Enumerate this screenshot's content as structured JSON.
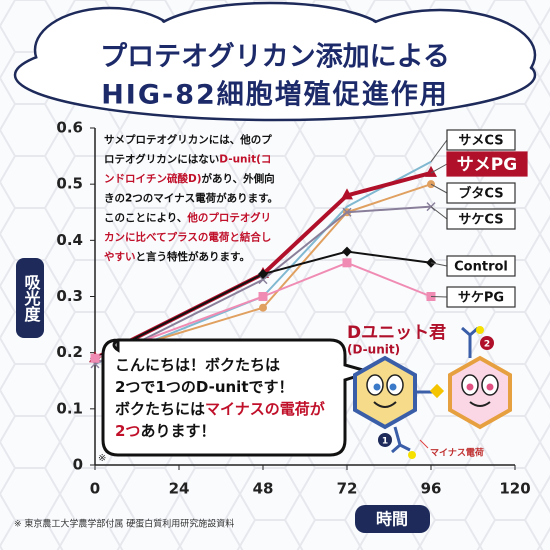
{
  "chart_data": {
    "type": "line",
    "title": [
      "プロテオグリカン添加による",
      "HIG-82細胞増殖促進作用"
    ],
    "y_label": "吸光度",
    "x_label": "時間",
    "x": [
      0,
      48,
      72,
      96
    ],
    "xlim": [
      0,
      120
    ],
    "xticks": [
      0,
      24,
      48,
      72,
      96,
      120
    ],
    "ylim": [
      0,
      0.6
    ],
    "yticks": [
      0,
      {
        "value": 0.1,
        "label": "0.1"
      },
      {
        "value": 0.2,
        "label": "0.2"
      },
      {
        "value": 0.3,
        "label": "0.3"
      },
      {
        "value": 0.4,
        "label": "0.4"
      },
      {
        "value": 0.5,
        "label": "0.5"
      },
      {
        "value": 0.6,
        "label": "0.6"
      }
    ],
    "series": [
      {
        "name": "サメCS",
        "color": "#7fb8d0",
        "marker": "none",
        "values": [
          0.18,
          0.3,
          0.46,
          0.54
        ]
      },
      {
        "name": "サメPG",
        "color": "#b0102a",
        "marker": "triangle",
        "values": [
          0.19,
          0.34,
          0.48,
          0.52
        ]
      },
      {
        "name": "ブタCS",
        "color": "#e0a060",
        "marker": "circle",
        "values": [
          0.19,
          0.28,
          0.45,
          0.5
        ]
      },
      {
        "name": "サケCS",
        "color": "#8a7f9a",
        "marker": "x",
        "values": [
          0.18,
          0.33,
          0.45,
          0.46
        ]
      },
      {
        "name": "Control",
        "color": "#111111",
        "marker": "diamond",
        "values": [
          0.19,
          0.34,
          0.38,
          0.36
        ]
      },
      {
        "name": "サケPG",
        "color": "#f08cb4",
        "marker": "square",
        "values": [
          0.19,
          0.3,
          0.36,
          0.3
        ]
      }
    ],
    "note": [
      [
        {
          "text": "サメプロテオグリカンには、他のプ"
        }
      ],
      [
        {
          "text": "ロテオグリカンにはない"
        },
        {
          "text": "D-unit(コ",
          "red": true
        }
      ],
      [
        {
          "text": "ンドロイチン硫酸D)",
          "red": true
        },
        {
          "text": "があり、外側向"
        }
      ],
      [
        {
          "text": "きの2つのマイナス電荷があります。"
        }
      ],
      [
        {
          "text": "このことにより、"
        },
        {
          "text": "他のプロテオグリ",
          "red": true
        }
      ],
      [
        {
          "text": "カンに比べてプラスの電荷と結合し",
          "red": true
        }
      ],
      [
        {
          "text": "やすい",
          "red": true
        },
        {
          "text": "と言う特性があります。"
        }
      ]
    ],
    "bubble": [
      [
        {
          "text": "こんにちは！ボクたちは"
        }
      ],
      [
        {
          "text": "2つで1つのD-unitです！"
        }
      ],
      [
        {
          "text": "ボクたちには"
        },
        {
          "text": "マイナスの電荷が",
          "red": true
        }
      ],
      [
        {
          "text": "2つ",
          "red": true
        },
        {
          "text": "あります！"
        }
      ]
    ],
    "character_name": "Dユニット君",
    "character_sub": "(D-unit)",
    "charge_label": "マイナス電荷",
    "badges": [
      "1",
      "2"
    ],
    "asterisk": "※",
    "source": "※ 東京農工大学農学部付属 硬蛋白質利用研究施設資料"
  }
}
